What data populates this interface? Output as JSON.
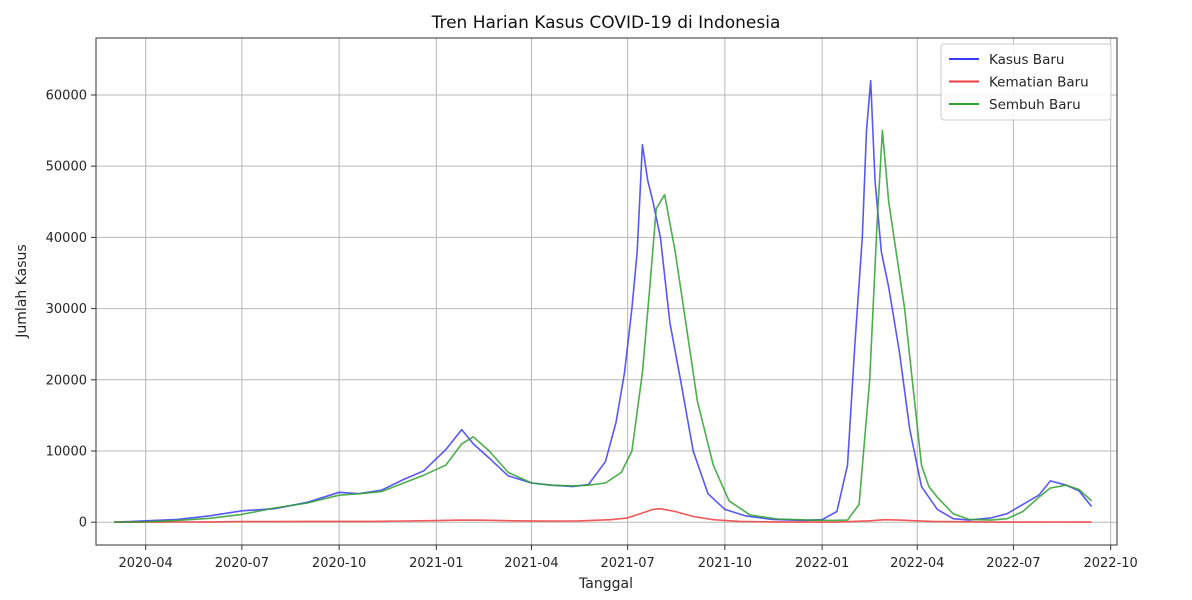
{
  "chart_data": {
    "type": "line",
    "title": "Tren Harian Kasus COVID-19 di Indonesia",
    "xlabel": "Tanggal",
    "ylabel": "Jumlah Kasus",
    "xlim": [
      "2020-02-14",
      "2022-10-07"
    ],
    "ylim": [
      -3200,
      68000
    ],
    "grid": true,
    "legend_position": "top-right",
    "x_ticks": [
      {
        "date": "2020-04-01",
        "label": "2020-04"
      },
      {
        "date": "2020-07-01",
        "label": "2020-07"
      },
      {
        "date": "2020-10-01",
        "label": "2020-10"
      },
      {
        "date": "2021-01-01",
        "label": "2021-01"
      },
      {
        "date": "2021-04-01",
        "label": "2021-04"
      },
      {
        "date": "2021-07-01",
        "label": "2021-07"
      },
      {
        "date": "2021-10-01",
        "label": "2021-10"
      },
      {
        "date": "2022-01-01",
        "label": "2022-01"
      },
      {
        "date": "2022-04-01",
        "label": "2022-04"
      },
      {
        "date": "2022-07-01",
        "label": "2022-07"
      },
      {
        "date": "2022-10-01",
        "label": "2022-10"
      }
    ],
    "y_ticks": [
      {
        "value": 0,
        "label": "0"
      },
      {
        "value": 10000,
        "label": "10000"
      },
      {
        "value": 20000,
        "label": "20000"
      },
      {
        "value": 30000,
        "label": "30000"
      },
      {
        "value": 40000,
        "label": "40000"
      },
      {
        "value": 50000,
        "label": "50000"
      },
      {
        "value": 60000,
        "label": "60000"
      }
    ],
    "series": [
      {
        "name": "Kasus Baru",
        "color": "#3b3bf5",
        "x": [
          "2020-03-02",
          "2020-04-01",
          "2020-05-01",
          "2020-06-01",
          "2020-07-01",
          "2020-08-01",
          "2020-09-01",
          "2020-10-01",
          "2020-10-20",
          "2020-11-10",
          "2020-12-01",
          "2020-12-20",
          "2021-01-10",
          "2021-01-25",
          "2021-02-05",
          "2021-02-20",
          "2021-03-10",
          "2021-04-01",
          "2021-04-20",
          "2021-05-10",
          "2021-05-25",
          "2021-06-10",
          "2021-06-20",
          "2021-06-28",
          "2021-07-05",
          "2021-07-10",
          "2021-07-15",
          "2021-07-20",
          "2021-07-25",
          "2021-08-01",
          "2021-08-10",
          "2021-08-20",
          "2021-09-01",
          "2021-09-15",
          "2021-10-01",
          "2021-10-20",
          "2021-11-15",
          "2021-12-15",
          "2022-01-01",
          "2022-01-15",
          "2022-01-25",
          "2022-02-01",
          "2022-02-08",
          "2022-02-12",
          "2022-02-16",
          "2022-02-20",
          "2022-02-26",
          "2022-03-05",
          "2022-03-15",
          "2022-03-25",
          "2022-04-05",
          "2022-04-20",
          "2022-05-05",
          "2022-05-20",
          "2022-06-10",
          "2022-06-25",
          "2022-07-10",
          "2022-07-25",
          "2022-08-05",
          "2022-08-20",
          "2022-09-01",
          "2022-09-13"
        ],
        "values": [
          2,
          200,
          400,
          900,
          1600,
          1900,
          2800,
          4200,
          4000,
          4500,
          6000,
          7200,
          10200,
          13000,
          11000,
          9000,
          6500,
          5500,
          5200,
          5000,
          5300,
          8500,
          14000,
          21000,
          30000,
          38000,
          53000,
          48000,
          45000,
          40000,
          28000,
          20000,
          10000,
          4000,
          1800,
          900,
          400,
          250,
          350,
          1500,
          8000,
          25000,
          40000,
          55000,
          62000,
          48000,
          38000,
          33000,
          24000,
          13000,
          5000,
          1800,
          500,
          300,
          600,
          1200,
          2500,
          3800,
          5800,
          5200,
          4400,
          2200
        ]
      },
      {
        "name": "Kematian Baru",
        "color": "#ee3b3b",
        "x": [
          "2020-03-02",
          "2020-04-01",
          "2020-05-01",
          "2020-06-01",
          "2020-07-01",
          "2020-08-01",
          "2020-09-01",
          "2020-10-01",
          "2020-11-01",
          "2020-12-01",
          "2021-01-01",
          "2021-01-25",
          "2021-02-15",
          "2021-03-15",
          "2021-04-15",
          "2021-05-15",
          "2021-06-15",
          "2021-07-01",
          "2021-07-15",
          "2021-07-25",
          "2021-08-01",
          "2021-08-15",
          "2021-09-01",
          "2021-09-20",
          "2021-10-15",
          "2021-11-15",
          "2022-01-15",
          "2022-02-15",
          "2022-03-01",
          "2022-03-15",
          "2022-04-15",
          "2022-06-15",
          "2022-08-15",
          "2022-09-13"
        ],
        "values": [
          0,
          20,
          30,
          50,
          80,
          90,
          110,
          120,
          120,
          170,
          220,
          300,
          280,
          200,
          150,
          180,
          350,
          600,
          1300,
          1800,
          1900,
          1500,
          800,
          350,
          120,
          50,
          20,
          200,
          350,
          300,
          120,
          20,
          30,
          20
        ]
      },
      {
        "name": "Sembuh Baru",
        "color": "#2ea02e",
        "x": [
          "2020-03-02",
          "2020-04-01",
          "2020-05-01",
          "2020-06-01",
          "2020-07-01",
          "2020-08-01",
          "2020-09-01",
          "2020-10-01",
          "2020-10-20",
          "2020-11-10",
          "2020-12-01",
          "2020-12-20",
          "2021-01-10",
          "2021-01-25",
          "2021-02-05",
          "2021-02-20",
          "2021-03-10",
          "2021-04-01",
          "2021-04-20",
          "2021-05-10",
          "2021-05-25",
          "2021-06-10",
          "2021-06-25",
          "2021-07-05",
          "2021-07-15",
          "2021-07-22",
          "2021-07-28",
          "2021-08-05",
          "2021-08-15",
          "2021-08-25",
          "2021-09-05",
          "2021-09-20",
          "2021-10-05",
          "2021-10-25",
          "2021-11-20",
          "2021-12-20",
          "2022-01-10",
          "2022-01-25",
          "2022-02-05",
          "2022-02-15",
          "2022-02-22",
          "2022-02-27",
          "2022-03-05",
          "2022-03-12",
          "2022-03-20",
          "2022-03-28",
          "2022-04-05",
          "2022-04-12",
          "2022-04-20",
          "2022-05-05",
          "2022-05-20",
          "2022-06-10",
          "2022-06-25",
          "2022-07-10",
          "2022-07-25",
          "2022-08-05",
          "2022-08-20",
          "2022-09-01",
          "2022-09-13"
        ],
        "values": [
          1,
          60,
          250,
          550,
          1100,
          2000,
          2700,
          3800,
          4000,
          4300,
          5500,
          6600,
          8000,
          11000,
          12000,
          10000,
          7000,
          5500,
          5200,
          5100,
          5200,
          5500,
          7000,
          10000,
          21000,
          33000,
          44000,
          46000,
          38000,
          28000,
          17000,
          8000,
          3000,
          1000,
          450,
          300,
          250,
          300,
          2500,
          20000,
          42000,
          55000,
          45000,
          38000,
          30000,
          19000,
          8000,
          5000,
          3500,
          1200,
          400,
          300,
          500,
          1500,
          3500,
          4800,
          5200,
          4600,
          3000
        ]
      }
    ]
  }
}
